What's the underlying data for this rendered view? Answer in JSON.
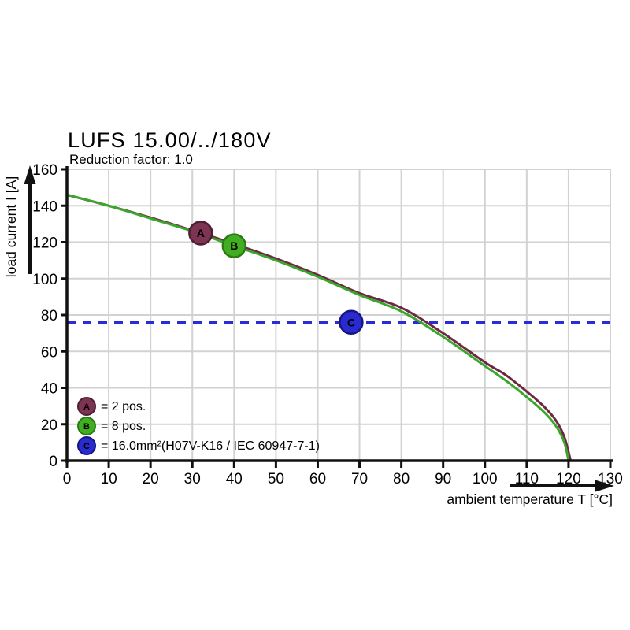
{
  "colors": {
    "background": "#ffffff",
    "grid": "#d2d2d2",
    "axis": "#111111",
    "curve_2pos": "#6e2843",
    "curve_8pos": "#3aa62c",
    "reference_dashed": "#2b2bd8",
    "marker_a_fill": "#7d3453",
    "marker_a_stroke": "#4e1f34",
    "marker_b_fill": "#41ae21",
    "marker_b_stroke": "#2b7a15",
    "marker_c_fill": "#2a2ad2",
    "marker_c_stroke": "#16167d"
  },
  "legend": {
    "items": [
      {
        "label": "A",
        "text": "= 2 pos.",
        "fill": "#7d3453",
        "stroke": "#4e1f34"
      },
      {
        "label": "B",
        "text": "= 8 pos.",
        "fill": "#41ae21",
        "stroke": "#2b7a15"
      },
      {
        "label": "C",
        "text": "= 16.0mm²(H07V-K16 / IEC 60947-7-1)",
        "fill": "#2a2ad2",
        "stroke": "#16167d"
      }
    ]
  },
  "chart_data": {
    "type": "line",
    "title": "LUFS 15.00/../180V",
    "subtitle": "Reduction factor: 1.0",
    "xlabel": "ambient temperature T [°C]",
    "ylabel": "load current I [A]",
    "xlim": [
      0,
      130
    ],
    "ylim": [
      0,
      160
    ],
    "xticks": [
      0,
      10,
      20,
      30,
      40,
      50,
      60,
      70,
      80,
      90,
      100,
      110,
      120,
      130
    ],
    "yticks": [
      0,
      20,
      40,
      60,
      80,
      100,
      120,
      140,
      160
    ],
    "grid": true,
    "legend_position": "bottom-left-inside",
    "series": [
      {
        "name": "2 pos.",
        "color": "#6e2843",
        "points": [
          [
            0,
            146
          ],
          [
            10,
            140
          ],
          [
            20,
            133.5
          ],
          [
            30,
            126.5
          ],
          [
            40,
            119
          ],
          [
            50,
            111
          ],
          [
            60,
            102
          ],
          [
            70,
            92
          ],
          [
            80,
            84
          ],
          [
            90,
            70
          ],
          [
            100,
            54
          ],
          [
            105,
            47
          ],
          [
            110,
            38
          ],
          [
            114,
            30
          ],
          [
            117,
            22
          ],
          [
            119,
            13
          ],
          [
            120.5,
            0
          ]
        ]
      },
      {
        "name": "8 pos.",
        "color": "#3aa62c",
        "points": [
          [
            0,
            146
          ],
          [
            10,
            140
          ],
          [
            20,
            133
          ],
          [
            30,
            126
          ],
          [
            40,
            118
          ],
          [
            50,
            110
          ],
          [
            60,
            101
          ],
          [
            70,
            91
          ],
          [
            80,
            82
          ],
          [
            90,
            68
          ],
          [
            100,
            52
          ],
          [
            105,
            44
          ],
          [
            110,
            35
          ],
          [
            114,
            27
          ],
          [
            117,
            19
          ],
          [
            119,
            10
          ],
          [
            120,
            0
          ]
        ]
      }
    ],
    "reference_line": {
      "value": 76,
      "axis": "y",
      "style": "dashed",
      "color": "#2b2bd8"
    },
    "markers": [
      {
        "label": "A",
        "x": 32,
        "y": 125,
        "fill": "#7d3453",
        "stroke": "#4e1f34"
      },
      {
        "label": "B",
        "x": 40,
        "y": 118,
        "fill": "#41ae21",
        "stroke": "#2b7a15"
      },
      {
        "label": "C",
        "x": 68,
        "y": 76,
        "fill": "#2a2ad2",
        "stroke": "#16167d"
      }
    ]
  }
}
